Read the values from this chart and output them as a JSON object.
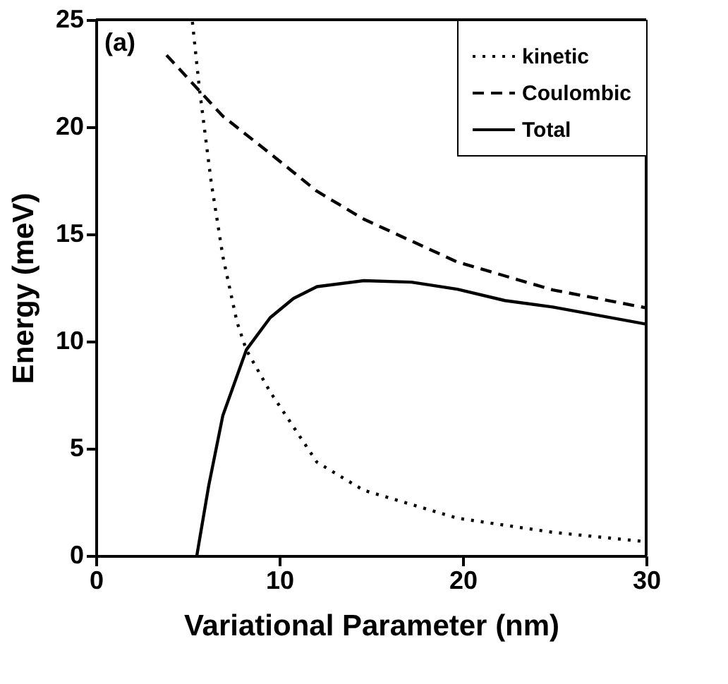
{
  "chart_data": {
    "type": "line",
    "xlabel": "Variational Parameter (nm)",
    "ylabel": "Energy (meV)",
    "xlim": [
      0,
      30
    ],
    "xticks": [
      0,
      10,
      20,
      30
    ],
    "ylim": [
      0,
      25
    ],
    "yticks": [
      0,
      5,
      10,
      15,
      20,
      25
    ],
    "grid": false,
    "legend": "top right",
    "annotations": [
      "(a)"
    ],
    "series": [
      {
        "name": "kinetic",
        "color": "#000000",
        "line_style": "dotted",
        "x": [
          5.26,
          5.64,
          6.28,
          6.92,
          7.69,
          8.2,
          9.5,
          12.05,
          14.6,
          19.7,
          24.9,
          30
        ],
        "values": [
          24.9,
          21.8,
          17.45,
          13.96,
          10.9,
          9.6,
          7.64,
          4.36,
          3.05,
          1.75,
          1.09,
          0.65
        ]
      },
      {
        "name": "Coulombic",
        "color": "#000000",
        "line_style": "dashed",
        "x": [
          3.85,
          6.92,
          9.5,
          12.05,
          14.6,
          19.7,
          24.9,
          30
        ],
        "values": [
          23.35,
          20.5,
          18.76,
          17.0,
          15.7,
          13.7,
          12.4,
          11.56
        ]
      },
      {
        "name": "Total",
        "color": "#000000",
        "line_style": "solid",
        "x": [
          5.5,
          6.15,
          6.92,
          8.2,
          9.5,
          10.77,
          12.05,
          14.6,
          17.2,
          19.7,
          22.3,
          24.9,
          30
        ],
        "values": [
          0,
          3.27,
          6.54,
          9.6,
          11.1,
          12.0,
          12.55,
          12.83,
          12.76,
          12.43,
          11.9,
          11.6,
          10.8
        ]
      }
    ]
  }
}
